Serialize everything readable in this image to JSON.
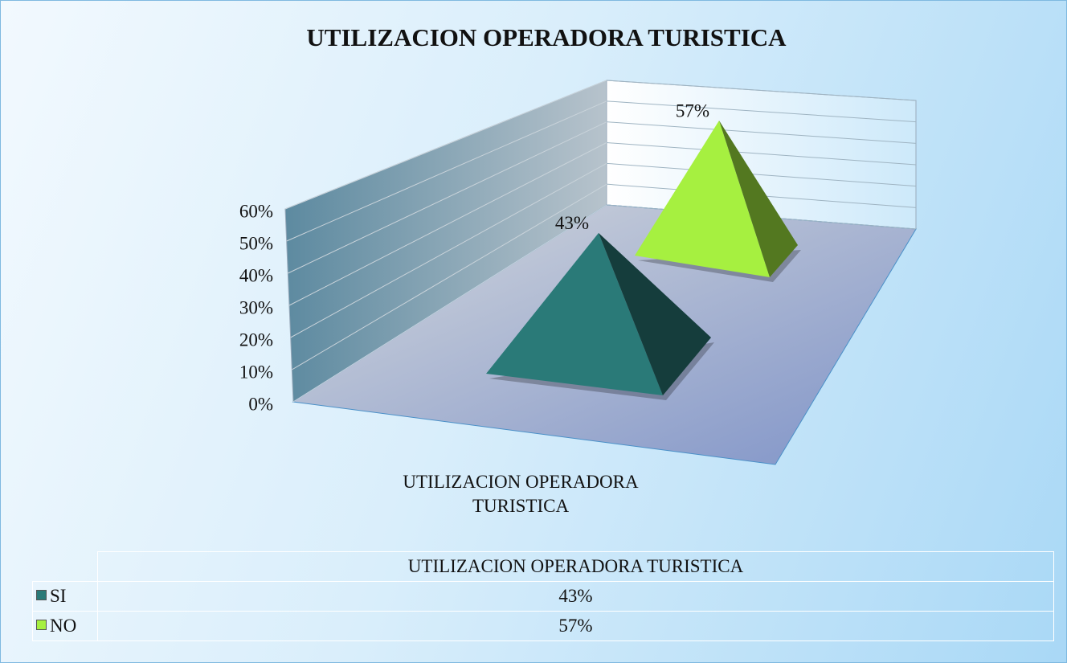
{
  "chart_data": {
    "type": "pyramid",
    "title": "UTILIZACION OPERADORA TURISTICA",
    "categories": [
      "UTILIZACION OPERADORA TURISTICA"
    ],
    "series": [
      {
        "name": "SI",
        "color": "#2a7a78",
        "values": [
          43
        ],
        "value_labels": [
          "43%"
        ]
      },
      {
        "name": "NO",
        "color": "#a6f040",
        "values": [
          57
        ],
        "value_labels": [
          "57%"
        ]
      }
    ],
    "ylim": [
      0,
      60
    ],
    "yticks": [
      {
        "value": 0,
        "label": "0%"
      },
      {
        "value": 10,
        "label": "10%"
      },
      {
        "value": 20,
        "label": "20%"
      },
      {
        "value": 30,
        "label": "30%"
      },
      {
        "value": 40,
        "label": "40%"
      },
      {
        "value": 50,
        "label": "50%"
      },
      {
        "value": 60,
        "label": "60%"
      }
    ],
    "grid": true,
    "data_table": true
  }
}
